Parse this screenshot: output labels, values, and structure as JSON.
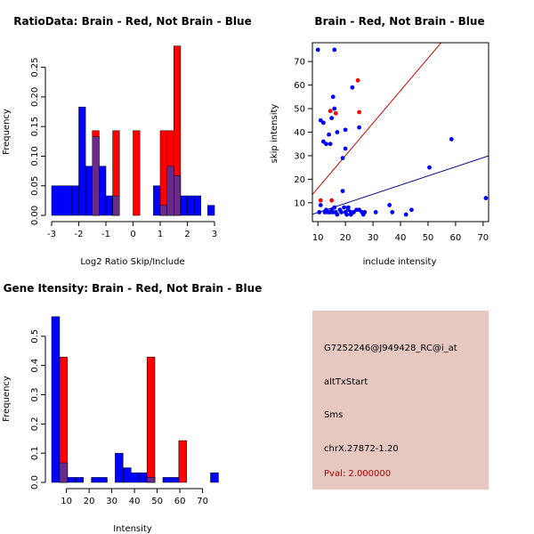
{
  "colors": {
    "red": "#ff0000",
    "blue": "#0000ff",
    "overlap": "#6a2a8a",
    "red_line": "#cc0000",
    "blue_line": "#00008b",
    "info_bg": "#e6c8c0",
    "pval": "#b00000"
  },
  "chart_data": [
    {
      "type": "bar",
      "title": "RatioData: Brain - Red, Not Brain - Blue",
      "xlabel": "Log2 Ratio Skip/Include",
      "ylabel": "Frequency",
      "xlim": [
        -3,
        3
      ],
      "ylim": [
        0,
        0.29
      ],
      "xticks": [
        -3,
        -2,
        -1,
        0,
        1,
        2,
        3
      ],
      "yticks": [
        "0.00",
        "0.05",
        "0.10",
        "0.15",
        "0.20",
        "0.25"
      ],
      "bin_width": 0.25,
      "series": [
        {
          "name": "Not Brain",
          "color": "blue",
          "bins": [
            {
              "start": -3.0,
              "value": 0.05
            },
            {
              "start": -2.75,
              "value": 0.05
            },
            {
              "start": -2.5,
              "value": 0.05
            },
            {
              "start": -2.25,
              "value": 0.05
            },
            {
              "start": -2.0,
              "value": 0.183
            },
            {
              "start": -1.75,
              "value": 0.083
            },
            {
              "start": -1.5,
              "value": 0.133
            },
            {
              "start": -1.25,
              "value": 0.083
            },
            {
              "start": -1.0,
              "value": 0.033
            },
            {
              "start": -0.75,
              "value": 0.033
            },
            {
              "start": 0.75,
              "value": 0.05
            },
            {
              "start": 1.0,
              "value": 0.017
            },
            {
              "start": 1.25,
              "value": 0.083
            },
            {
              "start": 1.5,
              "value": 0.067
            },
            {
              "start": 1.75,
              "value": 0.033
            },
            {
              "start": 2.0,
              "value": 0.033
            },
            {
              "start": 2.25,
              "value": 0.033
            },
            {
              "start": 2.75,
              "value": 0.017
            }
          ]
        },
        {
          "name": "Brain",
          "color": "red",
          "bins": [
            {
              "start": -1.5,
              "value": 0.143
            },
            {
              "start": -0.75,
              "value": 0.143
            },
            {
              "start": 0.0,
              "value": 0.143
            },
            {
              "start": 1.0,
              "value": 0.143
            },
            {
              "start": 1.25,
              "value": 0.143
            },
            {
              "start": 1.5,
              "value": 0.286
            }
          ]
        }
      ]
    },
    {
      "type": "scatter",
      "title": "Brain - Red, Not Brain - Blue",
      "xlabel": "include intensity",
      "ylabel": "skip intensity",
      "xlim": [
        8,
        72
      ],
      "ylim": [
        2,
        78
      ],
      "xticks": [
        10,
        20,
        30,
        40,
        50,
        60,
        70
      ],
      "yticks": [
        10,
        20,
        30,
        40,
        50,
        60,
        70
      ],
      "series": [
        {
          "name": "Not Brain",
          "color": "blue",
          "points": [
            [
              10,
              75
            ],
            [
              10.5,
              6
            ],
            [
              11,
              45
            ],
            [
              11,
              9
            ],
            [
              12,
              44
            ],
            [
              12,
              36
            ],
            [
              12.5,
              6
            ],
            [
              13,
              35
            ],
            [
              13,
              7
            ],
            [
              13.5,
              6
            ],
            [
              14,
              39
            ],
            [
              14,
              6
            ],
            [
              14.5,
              35
            ],
            [
              14.5,
              6
            ],
            [
              15,
              46
            ],
            [
              15,
              7
            ],
            [
              15.5,
              55
            ],
            [
              15.5,
              6
            ],
            [
              16,
              50
            ],
            [
              16,
              75
            ],
            [
              16,
              8
            ],
            [
              16.5,
              6
            ],
            [
              17,
              40
            ],
            [
              17,
              5
            ],
            [
              18,
              7
            ],
            [
              18.5,
              6
            ],
            [
              19,
              15
            ],
            [
              19,
              29
            ],
            [
              19.5,
              8
            ],
            [
              20,
              33
            ],
            [
              20,
              41
            ],
            [
              20,
              6
            ],
            [
              20.5,
              5
            ],
            [
              21,
              7
            ],
            [
              21,
              8
            ],
            [
              22,
              6
            ],
            [
              22,
              5
            ],
            [
              22.5,
              59
            ],
            [
              23,
              6
            ],
            [
              24,
              7
            ],
            [
              25,
              42
            ],
            [
              25,
              7
            ],
            [
              26,
              6
            ],
            [
              26.5,
              5
            ],
            [
              27,
              6
            ],
            [
              31,
              6
            ],
            [
              36,
              9
            ],
            [
              37,
              6
            ],
            [
              42,
              5
            ],
            [
              44,
              7
            ],
            [
              50.5,
              25
            ],
            [
              58.5,
              37
            ],
            [
              71,
              12
            ]
          ]
        },
        {
          "name": "Brain",
          "color": "red",
          "points": [
            [
              11,
              11
            ],
            [
              14.5,
              49
            ],
            [
              15,
              11
            ],
            [
              16.5,
              48
            ],
            [
              24.5,
              62
            ],
            [
              25,
              48.5
            ]
          ]
        }
      ],
      "fit_lines": [
        {
          "color": "red",
          "intercept": 2.45,
          "slope": 1.38
        },
        {
          "color": "blue",
          "intercept": 2.0,
          "slope": 0.388
        }
      ]
    },
    {
      "type": "bar",
      "title": "Gene Itensity: Brain - Red, Not Brain - Blue",
      "xlabel": "Intensity",
      "ylabel": "Frequency",
      "xlim": [
        3.5,
        78
      ],
      "ylim": [
        0,
        0.6
      ],
      "xticks": [
        10,
        20,
        30,
        40,
        50,
        60,
        70
      ],
      "yticks": [
        "0.0",
        "0.1",
        "0.2",
        "0.3",
        "0.4",
        "0.5"
      ],
      "bin_width": 3.5,
      "series": [
        {
          "name": "Not Brain",
          "color": "blue",
          "bins": [
            {
              "start": 3.5,
              "value": 0.567
            },
            {
              "start": 7.0,
              "value": 0.067
            },
            {
              "start": 10.5,
              "value": 0.017
            },
            {
              "start": 14.0,
              "value": 0.017
            },
            {
              "start": 21.0,
              "value": 0.017
            },
            {
              "start": 24.5,
              "value": 0.017
            },
            {
              "start": 31.5,
              "value": 0.1
            },
            {
              "start": 35.0,
              "value": 0.05
            },
            {
              "start": 38.5,
              "value": 0.033
            },
            {
              "start": 42.0,
              "value": 0.033
            },
            {
              "start": 45.5,
              "value": 0.017
            },
            {
              "start": 52.5,
              "value": 0.017
            },
            {
              "start": 56.0,
              "value": 0.017
            },
            {
              "start": 73.5,
              "value": 0.033
            }
          ]
        },
        {
          "name": "Brain",
          "color": "red",
          "bins": [
            {
              "start": 7.0,
              "value": 0.429
            },
            {
              "start": 45.5,
              "value": 0.429
            },
            {
              "start": 59.5,
              "value": 0.143
            }
          ]
        }
      ]
    }
  ],
  "info": {
    "probe": "G7252246@J949428_RC@i_at",
    "event": "altTxStart",
    "abbr": "Sms",
    "location": "chrX.27872-1.20",
    "pval": "Pval: 2.000000"
  }
}
